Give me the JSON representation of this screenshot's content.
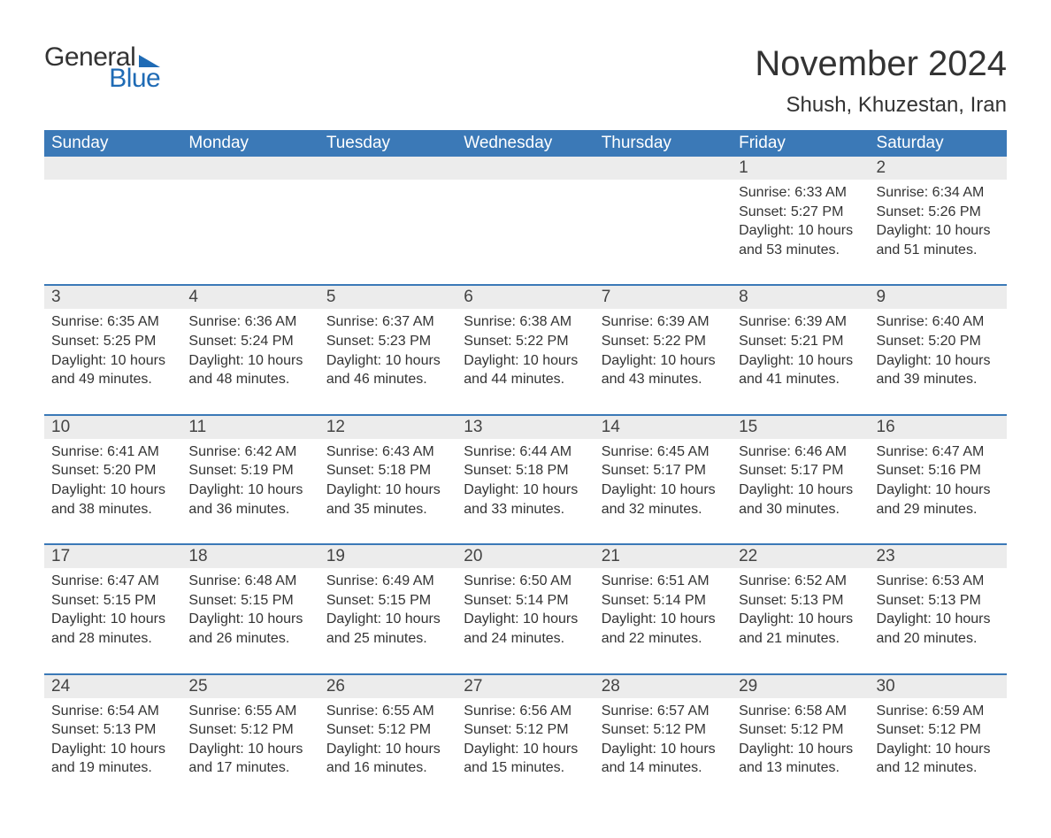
{
  "brand": {
    "word1": "General",
    "word2": "Blue",
    "accent_color": "#1f6bb5"
  },
  "header": {
    "month_title": "November 2024",
    "location": "Shush, Khuzestan, Iran"
  },
  "colors": {
    "header_bg": "#3b79b7",
    "header_text": "#ffffff",
    "daynum_bg": "#ececec",
    "row_border": "#3b79b7",
    "body_text": "#333333",
    "page_bg": "#ffffff"
  },
  "weekdays": [
    "Sunday",
    "Monday",
    "Tuesday",
    "Wednesday",
    "Thursday",
    "Friday",
    "Saturday"
  ],
  "weeks": [
    [
      null,
      null,
      null,
      null,
      null,
      {
        "n": "1",
        "sunrise": "Sunrise: 6:33 AM",
        "sunset": "Sunset: 5:27 PM",
        "daylight": "Daylight: 10 hours and 53 minutes."
      },
      {
        "n": "2",
        "sunrise": "Sunrise: 6:34 AM",
        "sunset": "Sunset: 5:26 PM",
        "daylight": "Daylight: 10 hours and 51 minutes."
      }
    ],
    [
      {
        "n": "3",
        "sunrise": "Sunrise: 6:35 AM",
        "sunset": "Sunset: 5:25 PM",
        "daylight": "Daylight: 10 hours and 49 minutes."
      },
      {
        "n": "4",
        "sunrise": "Sunrise: 6:36 AM",
        "sunset": "Sunset: 5:24 PM",
        "daylight": "Daylight: 10 hours and 48 minutes."
      },
      {
        "n": "5",
        "sunrise": "Sunrise: 6:37 AM",
        "sunset": "Sunset: 5:23 PM",
        "daylight": "Daylight: 10 hours and 46 minutes."
      },
      {
        "n": "6",
        "sunrise": "Sunrise: 6:38 AM",
        "sunset": "Sunset: 5:22 PM",
        "daylight": "Daylight: 10 hours and 44 minutes."
      },
      {
        "n": "7",
        "sunrise": "Sunrise: 6:39 AM",
        "sunset": "Sunset: 5:22 PM",
        "daylight": "Daylight: 10 hours and 43 minutes."
      },
      {
        "n": "8",
        "sunrise": "Sunrise: 6:39 AM",
        "sunset": "Sunset: 5:21 PM",
        "daylight": "Daylight: 10 hours and 41 minutes."
      },
      {
        "n": "9",
        "sunrise": "Sunrise: 6:40 AM",
        "sunset": "Sunset: 5:20 PM",
        "daylight": "Daylight: 10 hours and 39 minutes."
      }
    ],
    [
      {
        "n": "10",
        "sunrise": "Sunrise: 6:41 AM",
        "sunset": "Sunset: 5:20 PM",
        "daylight": "Daylight: 10 hours and 38 minutes."
      },
      {
        "n": "11",
        "sunrise": "Sunrise: 6:42 AM",
        "sunset": "Sunset: 5:19 PM",
        "daylight": "Daylight: 10 hours and 36 minutes."
      },
      {
        "n": "12",
        "sunrise": "Sunrise: 6:43 AM",
        "sunset": "Sunset: 5:18 PM",
        "daylight": "Daylight: 10 hours and 35 minutes."
      },
      {
        "n": "13",
        "sunrise": "Sunrise: 6:44 AM",
        "sunset": "Sunset: 5:18 PM",
        "daylight": "Daylight: 10 hours and 33 minutes."
      },
      {
        "n": "14",
        "sunrise": "Sunrise: 6:45 AM",
        "sunset": "Sunset: 5:17 PM",
        "daylight": "Daylight: 10 hours and 32 minutes."
      },
      {
        "n": "15",
        "sunrise": "Sunrise: 6:46 AM",
        "sunset": "Sunset: 5:17 PM",
        "daylight": "Daylight: 10 hours and 30 minutes."
      },
      {
        "n": "16",
        "sunrise": "Sunrise: 6:47 AM",
        "sunset": "Sunset: 5:16 PM",
        "daylight": "Daylight: 10 hours and 29 minutes."
      }
    ],
    [
      {
        "n": "17",
        "sunrise": "Sunrise: 6:47 AM",
        "sunset": "Sunset: 5:15 PM",
        "daylight": "Daylight: 10 hours and 28 minutes."
      },
      {
        "n": "18",
        "sunrise": "Sunrise: 6:48 AM",
        "sunset": "Sunset: 5:15 PM",
        "daylight": "Daylight: 10 hours and 26 minutes."
      },
      {
        "n": "19",
        "sunrise": "Sunrise: 6:49 AM",
        "sunset": "Sunset: 5:15 PM",
        "daylight": "Daylight: 10 hours and 25 minutes."
      },
      {
        "n": "20",
        "sunrise": "Sunrise: 6:50 AM",
        "sunset": "Sunset: 5:14 PM",
        "daylight": "Daylight: 10 hours and 24 minutes."
      },
      {
        "n": "21",
        "sunrise": "Sunrise: 6:51 AM",
        "sunset": "Sunset: 5:14 PM",
        "daylight": "Daylight: 10 hours and 22 minutes."
      },
      {
        "n": "22",
        "sunrise": "Sunrise: 6:52 AM",
        "sunset": "Sunset: 5:13 PM",
        "daylight": "Daylight: 10 hours and 21 minutes."
      },
      {
        "n": "23",
        "sunrise": "Sunrise: 6:53 AM",
        "sunset": "Sunset: 5:13 PM",
        "daylight": "Daylight: 10 hours and 20 minutes."
      }
    ],
    [
      {
        "n": "24",
        "sunrise": "Sunrise: 6:54 AM",
        "sunset": "Sunset: 5:13 PM",
        "daylight": "Daylight: 10 hours and 19 minutes."
      },
      {
        "n": "25",
        "sunrise": "Sunrise: 6:55 AM",
        "sunset": "Sunset: 5:12 PM",
        "daylight": "Daylight: 10 hours and 17 minutes."
      },
      {
        "n": "26",
        "sunrise": "Sunrise: 6:55 AM",
        "sunset": "Sunset: 5:12 PM",
        "daylight": "Daylight: 10 hours and 16 minutes."
      },
      {
        "n": "27",
        "sunrise": "Sunrise: 6:56 AM",
        "sunset": "Sunset: 5:12 PM",
        "daylight": "Daylight: 10 hours and 15 minutes."
      },
      {
        "n": "28",
        "sunrise": "Sunrise: 6:57 AM",
        "sunset": "Sunset: 5:12 PM",
        "daylight": "Daylight: 10 hours and 14 minutes."
      },
      {
        "n": "29",
        "sunrise": "Sunrise: 6:58 AM",
        "sunset": "Sunset: 5:12 PM",
        "daylight": "Daylight: 10 hours and 13 minutes."
      },
      {
        "n": "30",
        "sunrise": "Sunrise: 6:59 AM",
        "sunset": "Sunset: 5:12 PM",
        "daylight": "Daylight: 10 hours and 12 minutes."
      }
    ]
  ]
}
